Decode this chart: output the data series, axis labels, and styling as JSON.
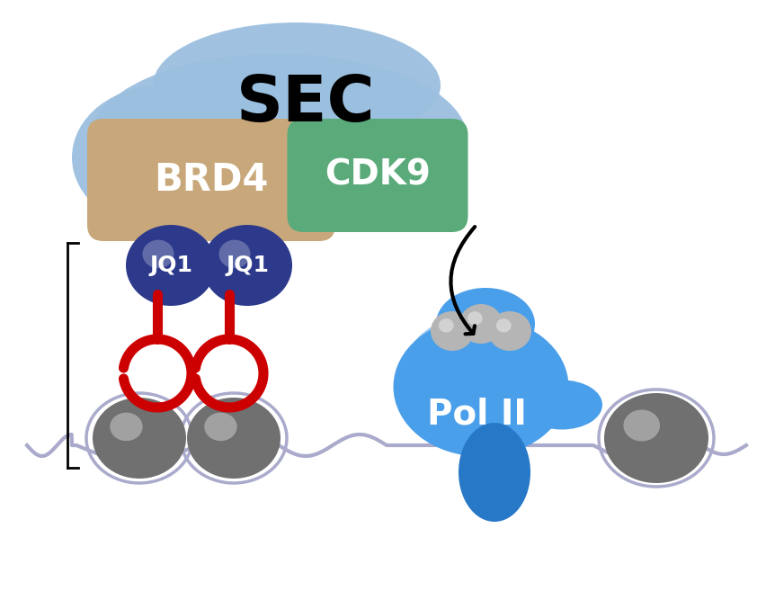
{
  "sec_color": "#9bbfdf",
  "brd4_color": "#c8a87a",
  "cdk9_color": "#5aaa7a",
  "jq1_color": "#2d3a8c",
  "polII_color_light": "#4a9fea",
  "polII_color_dark": "#2878c8",
  "nucleosome_color": "#888888",
  "dna_color": "#aaaacc",
  "red_color": "#cc0000",
  "bg_color": "#ffffff",
  "sec_label": "SEC",
  "brd4_label": "BRD4",
  "cdk9_label": "CDK9",
  "jq1_label": "JQ1",
  "polII_label": "Pol II"
}
